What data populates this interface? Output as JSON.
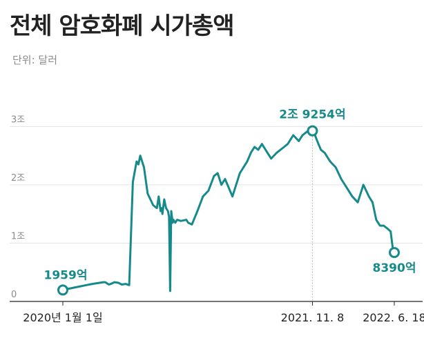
{
  "header": {
    "title": "전체 암호화폐 시가총액",
    "unit": "단위: 달러"
  },
  "colors": {
    "line": "#16898b",
    "grid": "#e3e3e3",
    "axis": "#222222",
    "marker_fill": "#ffffff"
  },
  "chart_data": {
    "type": "line",
    "title": "전체 암호화폐 시가총액",
    "xlabel": "",
    "ylabel": "",
    "ylim": [
      0,
      3.3
    ],
    "yticks": [
      {
        "value": 0,
        "label": "0"
      },
      {
        "value": 1,
        "label": "1조"
      },
      {
        "value": 2,
        "label": "2조"
      },
      {
        "value": 3,
        "label": "3조"
      }
    ],
    "xticks": [
      {
        "x": 0,
        "label": "2020년 1월 1일"
      },
      {
        "x": 677,
        "label": "2021. 11. 8"
      },
      {
        "x": 899,
        "label": "2022. 6. 18"
      }
    ],
    "x": [
      0,
      40,
      80,
      110,
      115,
      125,
      130,
      140,
      150,
      160,
      170,
      180,
      190,
      200,
      205,
      210,
      220,
      230,
      245,
      255,
      260,
      265,
      268,
      270,
      275,
      280,
      285,
      288,
      291,
      294,
      296,
      298,
      300,
      305,
      310,
      320,
      335,
      340,
      350,
      365,
      380,
      395,
      410,
      420,
      430,
      440,
      460,
      480,
      500,
      510,
      520,
      530,
      540,
      555,
      565,
      580,
      600,
      610,
      625,
      640,
      650,
      660,
      670,
      677,
      684,
      690,
      700,
      710,
      725,
      740,
      755,
      770,
      785,
      800,
      815,
      830,
      840,
      850,
      860,
      870,
      880,
      889,
      892,
      895,
      899
    ],
    "y": [
      0.196,
      0.25,
      0.3,
      0.33,
      0.33,
      0.29,
      0.3,
      0.33,
      0.32,
      0.29,
      0.3,
      0.28,
      2.05,
      2.4,
      2.35,
      2.5,
      2.3,
      1.85,
      1.65,
      1.6,
      1.8,
      1.55,
      1.6,
      1.5,
      1.75,
      1.6,
      1.55,
      1.45,
      0.18,
      1.55,
      1.45,
      1.35,
      1.4,
      1.35,
      1.4,
      1.38,
      1.4,
      1.35,
      1.32,
      1.55,
      1.8,
      1.9,
      2.15,
      2.2,
      2.0,
      2.1,
      1.8,
      2.2,
      2.4,
      2.55,
      2.65,
      2.6,
      2.7,
      2.55,
      2.45,
      2.55,
      2.65,
      2.7,
      2.85,
      2.75,
      2.85,
      2.9,
      2.95,
      2.9254,
      2.85,
      2.75,
      2.6,
      2.55,
      2.4,
      2.3,
      2.1,
      1.95,
      1.8,
      1.7,
      2.0,
      1.8,
      1.7,
      1.4,
      1.3,
      1.3,
      1.25,
      1.2,
      1.05,
      0.9,
      0.839
    ],
    "annotations": [
      {
        "x": 0,
        "y": 0.196,
        "label": "1959억",
        "marker": true
      },
      {
        "x": 677,
        "y": 2.9254,
        "label": "2조 9254억",
        "marker": true,
        "vline": true
      },
      {
        "x": 899,
        "y": 0.839,
        "label": "8390억",
        "marker": true
      }
    ],
    "grid": "horizontal"
  }
}
